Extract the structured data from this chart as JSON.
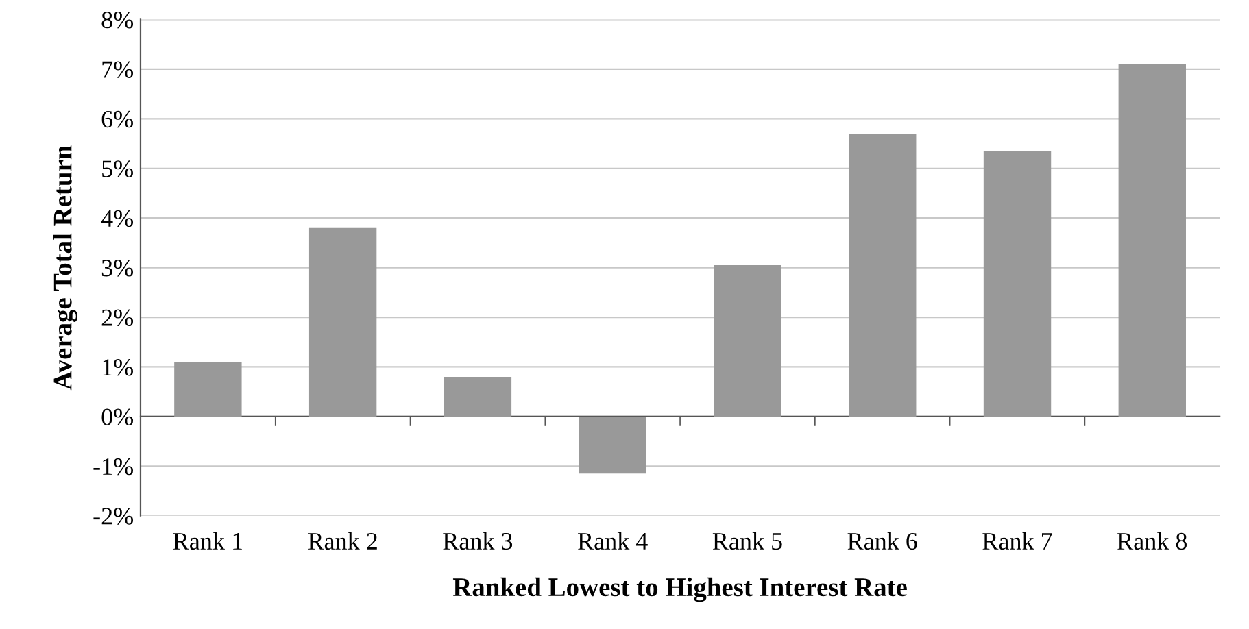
{
  "chart_data": {
    "type": "bar",
    "xlabel": "Ranked Lowest to Highest Interest Rate",
    "ylabel": "Average Total Return",
    "categories": [
      "Rank 1",
      "Rank 2",
      "Rank 3",
      "Rank 4",
      "Rank 5",
      "Rank 6",
      "Rank 7",
      "Rank 8"
    ],
    "values": [
      1.1,
      3.8,
      0.8,
      -1.15,
      3.05,
      5.7,
      5.35,
      7.1
    ],
    "color": "#999999",
    "ylim": [
      -2,
      8
    ],
    "yticks": [
      {
        "value": -2,
        "label": "-2%"
      },
      {
        "value": -1,
        "label": "-1%"
      },
      {
        "value": 0,
        "label": "0%"
      },
      {
        "value": 1,
        "label": "1%"
      },
      {
        "value": 2,
        "label": "2%"
      },
      {
        "value": 3,
        "label": "3%"
      },
      {
        "value": 4,
        "label": "4%"
      },
      {
        "value": 5,
        "label": "5%"
      },
      {
        "value": 6,
        "label": "6%"
      },
      {
        "value": 7,
        "label": "7%"
      },
      {
        "value": 8,
        "label": "8%"
      }
    ],
    "grid": "y"
  }
}
